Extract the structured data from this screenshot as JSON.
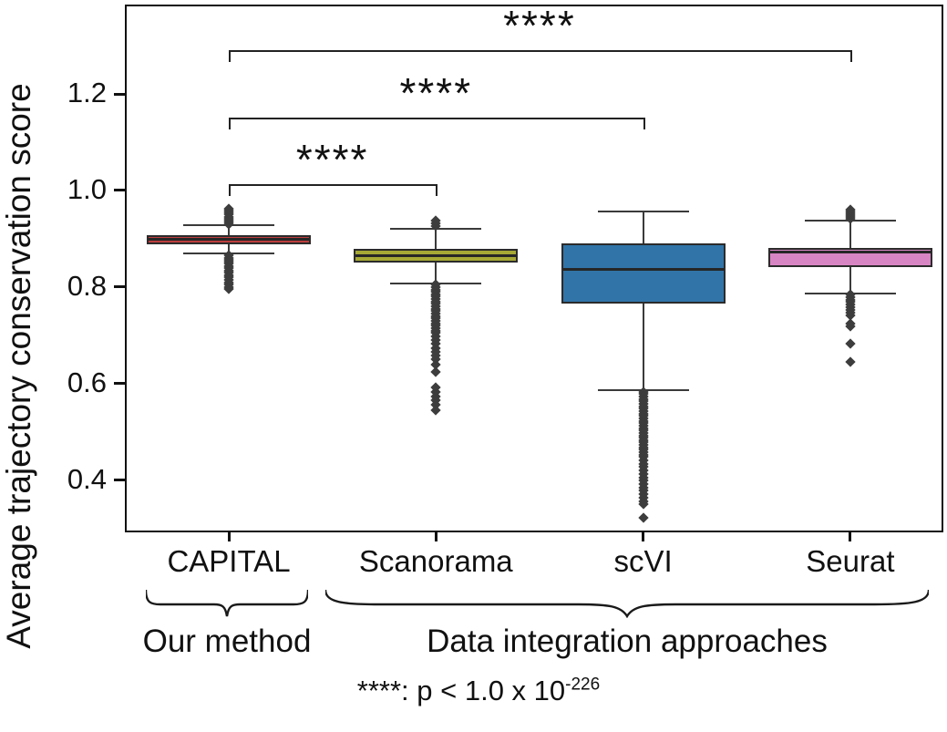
{
  "chart_data": {
    "type": "boxplot",
    "title": "",
    "ylabel": "Average trajectory conservation score",
    "xlabel": "",
    "ylim": [
      0.292,
      1.385
    ],
    "yticks": [
      1.2,
      1.0,
      0.8,
      0.6,
      0.4
    ],
    "grid": false,
    "categories": [
      "CAPITAL",
      "Scanorama",
      "scVI",
      "Seurat"
    ],
    "boxes": [
      {
        "label": "CAPITAL",
        "color": "#bc3d3e",
        "whisker_low": 0.869,
        "q1": 0.889,
        "median": 0.898,
        "q3": 0.908,
        "whisker_high": 0.929,
        "outliers_high": [
          0.93,
          0.934,
          0.938,
          0.942,
          0.946,
          0.95,
          0.954,
          0.958,
          0.962
        ],
        "outliers_low": [
          0.866,
          0.861,
          0.857,
          0.852,
          0.848,
          0.843,
          0.839,
          0.834,
          0.83,
          0.825,
          0.82,
          0.815,
          0.81,
          0.805,
          0.8,
          0.796
        ]
      },
      {
        "label": "Scanorama",
        "color": "#a6a835",
        "whisker_low": 0.808,
        "q1": 0.851,
        "median": 0.864,
        "q3": 0.879,
        "whisker_high": 0.921,
        "outliers_high": [
          0.927,
          0.932,
          0.937
        ],
        "outliers_low": [
          0.805,
          0.8,
          0.795,
          0.79,
          0.785,
          0.78,
          0.775,
          0.77,
          0.765,
          0.76,
          0.755,
          0.75,
          0.745,
          0.74,
          0.735,
          0.73,
          0.725,
          0.72,
          0.715,
          0.71,
          0.705,
          0.698,
          0.69,
          0.682,
          0.674,
          0.666,
          0.658,
          0.65,
          0.64,
          0.625,
          0.592,
          0.583,
          0.574,
          0.565,
          0.556,
          0.545
        ]
      },
      {
        "label": "scVI",
        "color": "#3174a8",
        "whisker_low": 0.587,
        "q1": 0.766,
        "median": 0.836,
        "q3": 0.89,
        "whisker_high": 0.957,
        "outliers_high": [],
        "outliers_low": [
          0.583,
          0.578,
          0.573,
          0.568,
          0.563,
          0.558,
          0.553,
          0.548,
          0.543,
          0.538,
          0.533,
          0.528,
          0.523,
          0.518,
          0.513,
          0.508,
          0.503,
          0.498,
          0.493,
          0.488,
          0.483,
          0.478,
          0.473,
          0.468,
          0.463,
          0.458,
          0.453,
          0.448,
          0.441,
          0.434,
          0.427,
          0.42,
          0.413,
          0.406,
          0.399,
          0.392,
          0.385,
          0.378,
          0.371,
          0.364,
          0.357,
          0.35,
          0.322
        ]
      },
      {
        "label": "Seurat",
        "color": "#d885c3",
        "whisker_low": 0.787,
        "q1": 0.841,
        "median": 0.872,
        "q3": 0.881,
        "whisker_high": 0.938,
        "outliers_high": [
          0.941,
          0.945,
          0.949,
          0.953,
          0.957,
          0.961
        ],
        "outliers_low": [
          0.784,
          0.779,
          0.774,
          0.769,
          0.764,
          0.759,
          0.753,
          0.747,
          0.742,
          0.724,
          0.719,
          0.683,
          0.645
        ]
      }
    ],
    "significance": [
      {
        "from": "CAPITAL",
        "to": "Scanorama",
        "label": "****"
      },
      {
        "from": "CAPITAL",
        "to": "scVI",
        "label": "****"
      },
      {
        "from": "CAPITAL",
        "to": "Seurat",
        "label": "****"
      }
    ],
    "annotations": {
      "our_method": "Our method",
      "integration": "Data integration approaches",
      "pvalue_prefix": "****: p < 1.0 x 10",
      "pvalue_exponent": "-226"
    }
  }
}
